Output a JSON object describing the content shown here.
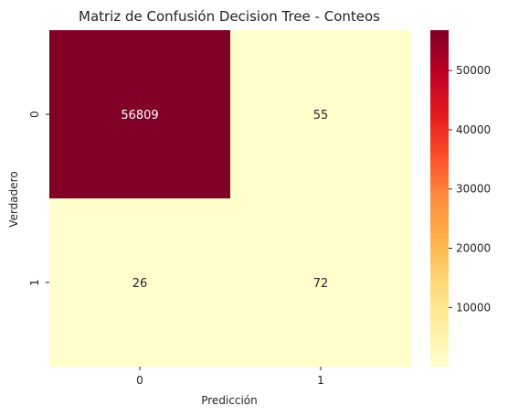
{
  "chart_data": {
    "type": "heatmap",
    "title": "Matriz de Confusión Decision Tree - Conteos",
    "xlabel": "Predicción",
    "ylabel": "Verdadero",
    "x_categories": [
      "0",
      "1"
    ],
    "y_categories": [
      "0",
      "1"
    ],
    "values": [
      [
        56809,
        55
      ],
      [
        26,
        72
      ]
    ],
    "colormap": "YlOrRd",
    "colors": {
      "min": "#ffffcc",
      "max": "#800026"
    },
    "colorbar": {
      "ticks": [
        10000,
        20000,
        30000,
        40000,
        50000
      ],
      "tick_labels": [
        "10000",
        "20000",
        "30000",
        "40000",
        "50000"
      ],
      "range": [
        26,
        56809
      ]
    },
    "grid": false
  }
}
